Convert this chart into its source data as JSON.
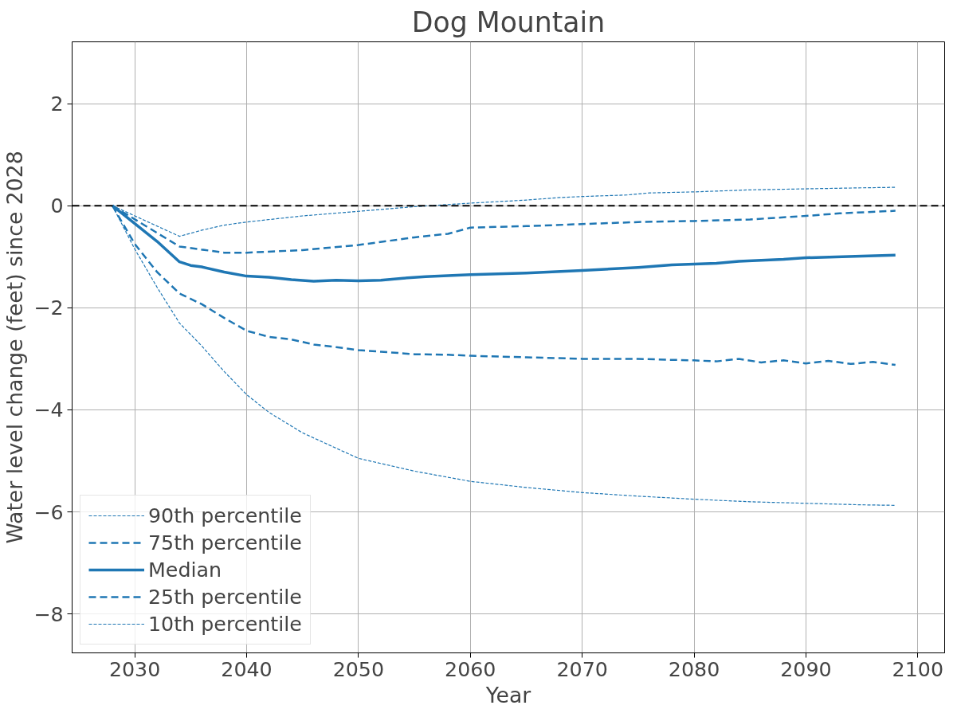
{
  "chart_data": {
    "type": "line",
    "title": "Dog Mountain",
    "xlabel": "Year",
    "ylabel": "Water level change (feet) since 2028",
    "xlim": [
      2024.4,
      2102.4
    ],
    "ylim": [
      -8.76,
      3.21
    ],
    "xticks": [
      2030,
      2040,
      2050,
      2060,
      2070,
      2080,
      2090,
      2100
    ],
    "yticks": [
      -8,
      -6,
      -4,
      -2,
      0,
      2
    ],
    "grid": true,
    "legend": "bottom left",
    "ref_lines": [
      {
        "axis": "y",
        "value": 0,
        "label": null,
        "color": "#000000",
        "line_style": "dashed"
      }
    ],
    "series": [
      {
        "name": "90th percentile",
        "color": "#1f77b4",
        "line_style": "dotted",
        "x": [
          2028,
          2034,
          2036,
          2038,
          2040,
          2045,
          2050,
          2055,
          2060,
          2065,
          2068,
          2070,
          2074,
          2076,
          2080,
          2085,
          2090,
          2095,
          2098
        ],
        "values": [
          0,
          -0.6,
          -0.48,
          -0.38,
          -0.32,
          -0.2,
          -0.11,
          -0.02,
          0.05,
          0.11,
          0.16,
          0.18,
          0.21,
          0.25,
          0.27,
          0.31,
          0.33,
          0.35,
          0.36
        ]
      },
      {
        "name": "75th percentile",
        "color": "#1f77b4",
        "line_style": "dashed",
        "x": [
          2028,
          2034,
          2038,
          2040,
          2045,
          2050,
          2055,
          2058,
          2060,
          2065,
          2070,
          2075,
          2080,
          2085,
          2090,
          2093,
          2098
        ],
        "values": [
          0,
          -0.8,
          -0.92,
          -0.92,
          -0.87,
          -0.77,
          -0.62,
          -0.55,
          -0.43,
          -0.4,
          -0.36,
          -0.32,
          -0.3,
          -0.27,
          -0.2,
          -0.15,
          -0.1
        ]
      },
      {
        "name": "Median",
        "color": "#1f77b4",
        "line_style": "solid",
        "x": [
          2028,
          2030,
          2032,
          2034,
          2035,
          2036,
          2038,
          2040,
          2042,
          2044,
          2046,
          2048,
          2050,
          2052,
          2054,
          2056,
          2058,
          2060,
          2065,
          2070,
          2075,
          2078,
          2082,
          2084,
          2088,
          2090,
          2095,
          2098
        ],
        "values": [
          0,
          -0.35,
          -0.7,
          -1.1,
          -1.17,
          -1.2,
          -1.3,
          -1.38,
          -1.4,
          -1.45,
          -1.48,
          -1.46,
          -1.47,
          -1.46,
          -1.42,
          -1.39,
          -1.37,
          -1.35,
          -1.32,
          -1.27,
          -1.21,
          -1.16,
          -1.13,
          -1.09,
          -1.05,
          -1.02,
          -0.99,
          -0.97
        ]
      },
      {
        "name": "25th percentile",
        "color": "#1f77b4",
        "line_style": "dashed",
        "x": [
          2028,
          2030,
          2032,
          2034,
          2036,
          2038,
          2040,
          2042,
          2044,
          2046,
          2048,
          2050,
          2052,
          2055,
          2058,
          2060,
          2065,
          2070,
          2075,
          2078,
          2080,
          2082,
          2084,
          2086,
          2088,
          2090,
          2092,
          2094,
          2096,
          2098
        ],
        "values": [
          0,
          -0.75,
          -1.3,
          -1.72,
          -1.93,
          -2.2,
          -2.45,
          -2.57,
          -2.62,
          -2.72,
          -2.77,
          -2.83,
          -2.86,
          -2.91,
          -2.92,
          -2.94,
          -2.97,
          -3.0,
          -3.0,
          -3.02,
          -3.03,
          -3.05,
          -3.0,
          -3.07,
          -3.03,
          -3.09,
          -3.04,
          -3.1,
          -3.06,
          -3.12
        ]
      },
      {
        "name": "10th percentile",
        "color": "#1f77b4",
        "line_style": "dotted",
        "x": [
          2028,
          2030,
          2032,
          2034,
          2036,
          2038,
          2040,
          2042,
          2045,
          2048,
          2050,
          2055,
          2060,
          2065,
          2070,
          2075,
          2080,
          2085,
          2090,
          2095,
          2098
        ],
        "values": [
          0,
          -0.85,
          -1.6,
          -2.3,
          -2.75,
          -3.25,
          -3.7,
          -4.05,
          -4.45,
          -4.75,
          -4.95,
          -5.2,
          -5.4,
          -5.52,
          -5.62,
          -5.69,
          -5.75,
          -5.8,
          -5.83,
          -5.86,
          -5.87
        ]
      }
    ]
  }
}
